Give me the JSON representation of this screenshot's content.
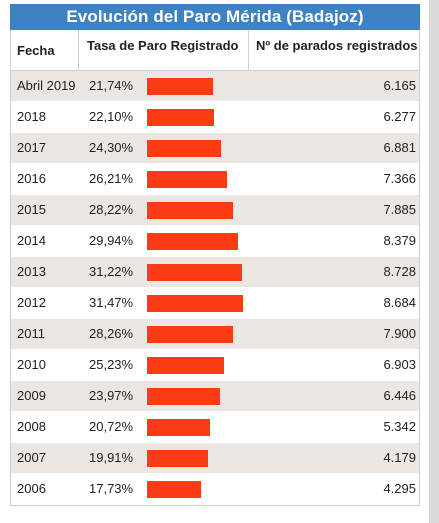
{
  "title": "Evolución del Paro Mérida (Badajoz)",
  "headers": {
    "fecha": "Fecha",
    "tasa": "Tasa de Paro Registrado",
    "parados": "Nº de parados registrados"
  },
  "colors": {
    "title_bg": "#3d82c2",
    "bar": "#fa3b13",
    "row_alt": "#ebe6e1"
  },
  "chart_data": {
    "type": "table",
    "title": "Evolución del Paro Mérida (Badajoz)",
    "columns": [
      "Fecha",
      "Tasa de Paro Registrado",
      "Nº de parados registrados"
    ],
    "rows": [
      {
        "fecha": "Abril 2019",
        "tasa_label": "21,74%",
        "tasa": 21.74,
        "parados": "6.165"
      },
      {
        "fecha": "2018",
        "tasa_label": "22,10%",
        "tasa": 22.1,
        "parados": "6.277"
      },
      {
        "fecha": "2017",
        "tasa_label": "24,30%",
        "tasa": 24.3,
        "parados": "6.881"
      },
      {
        "fecha": "2016",
        "tasa_label": "26,21%",
        "tasa": 26.21,
        "parados": "7.366"
      },
      {
        "fecha": "2015",
        "tasa_label": "28,22%",
        "tasa": 28.22,
        "parados": "7.885"
      },
      {
        "fecha": "2014",
        "tasa_label": "29,94%",
        "tasa": 29.94,
        "parados": "8.379"
      },
      {
        "fecha": "2013",
        "tasa_label": "31,22%",
        "tasa": 31.22,
        "parados": "8.728"
      },
      {
        "fecha": "2012",
        "tasa_label": "31,47%",
        "tasa": 31.47,
        "parados": "8.684"
      },
      {
        "fecha": "2011",
        "tasa_label": "28,26%",
        "tasa": 28.26,
        "parados": "7.900"
      },
      {
        "fecha": "2010",
        "tasa_label": "25,23%",
        "tasa": 25.23,
        "parados": "6.903"
      },
      {
        "fecha": "2009",
        "tasa_label": "23,97%",
        "tasa": 23.97,
        "parados": "6.446"
      },
      {
        "fecha": "2008",
        "tasa_label": "20,72%",
        "tasa": 20.72,
        "parados": "5.342"
      },
      {
        "fecha": "2007",
        "tasa_label": "19,91%",
        "tasa": 19.91,
        "parados": "4.179"
      },
      {
        "fecha": "2006",
        "tasa_label": "17,73%",
        "tasa": 17.73,
        "parados": "4.295"
      }
    ]
  }
}
